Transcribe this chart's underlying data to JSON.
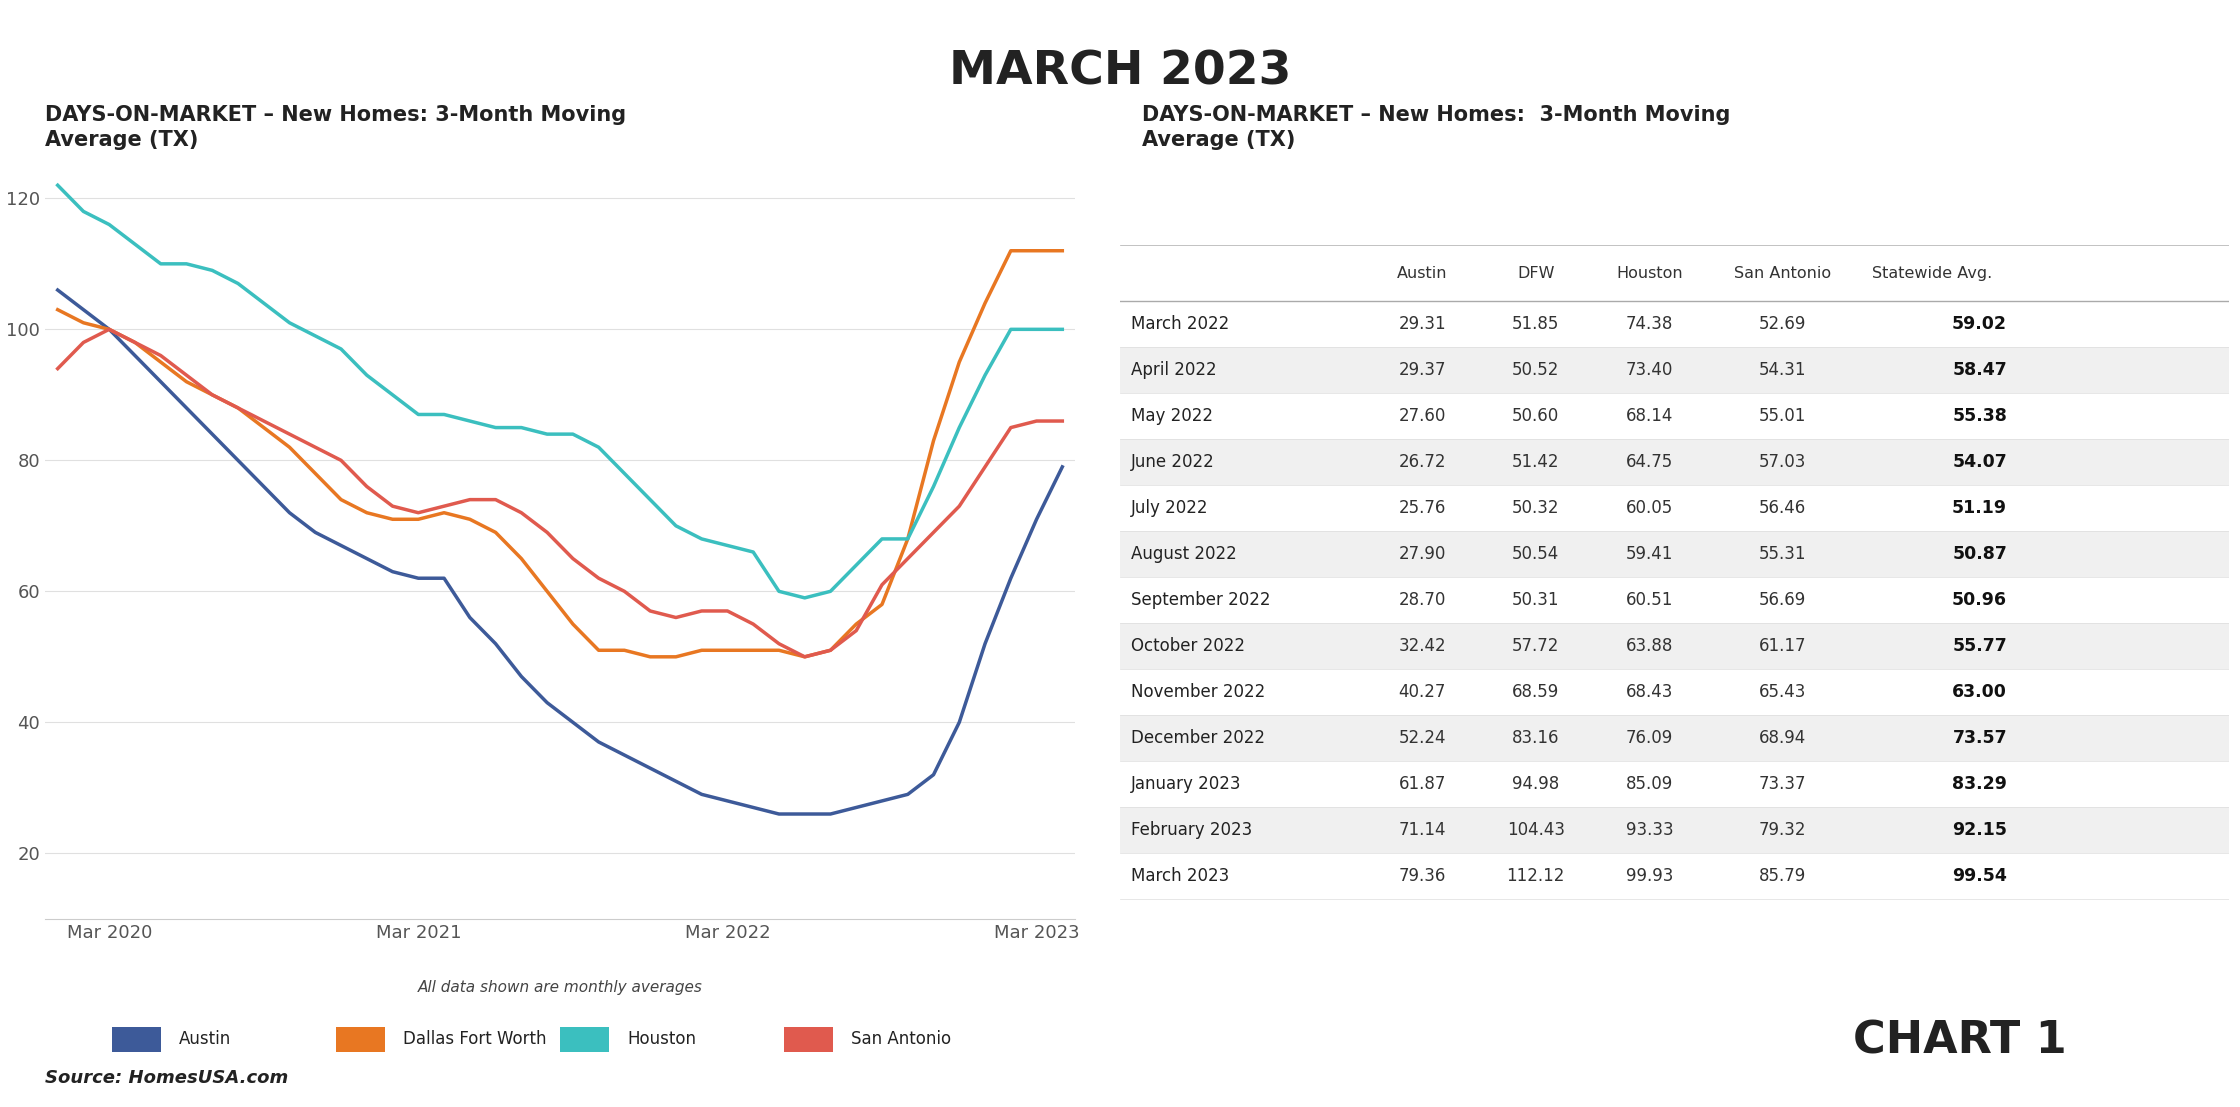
{
  "title": "MARCH 2023",
  "chart_subtitle_left": "DAYS-ON-MARKET – New Homes: 3-Month Moving\nAverage (TX)",
  "chart_subtitle_right": "DAYS-ON-MARKET – New Homes:  3-Month Moving\nAverage (TX)",
  "source": "Source: HomesUSA.com",
  "chart1_label": "CHART 1",
  "note": "All data shown are monthly averages",
  "x_tick_labels": [
    "Mar 2020",
    "Mar 2021",
    "Mar 2022",
    "Mar 2023"
  ],
  "y_ticks": [
    20,
    40,
    60,
    80,
    100,
    120
  ],
  "legend_items": [
    "Austin",
    "Dallas Fort Worth",
    "Houston",
    "San Antonio"
  ],
  "line_colors": {
    "Austin": "#3d5a99",
    "DFW": "#e87722",
    "Houston": "#3bbfbf",
    "San Antonio": "#e05a4e"
  },
  "table_headers": [
    "",
    "Austin",
    "DFW",
    "Houston",
    "San Antonio",
    "Statewide Avg."
  ],
  "table_rows": [
    [
      "March 2022",
      "29.31",
      "51.85",
      "74.38",
      "52.69",
      "59.02"
    ],
    [
      "April 2022",
      "29.37",
      "50.52",
      "73.40",
      "54.31",
      "58.47"
    ],
    [
      "May 2022",
      "27.60",
      "50.60",
      "68.14",
      "55.01",
      "55.38"
    ],
    [
      "June 2022",
      "26.72",
      "51.42",
      "64.75",
      "57.03",
      "54.07"
    ],
    [
      "July 2022",
      "25.76",
      "50.32",
      "60.05",
      "56.46",
      "51.19"
    ],
    [
      "August 2022",
      "27.90",
      "50.54",
      "59.41",
      "55.31",
      "50.87"
    ],
    [
      "September 2022",
      "28.70",
      "50.31",
      "60.51",
      "56.69",
      "50.96"
    ],
    [
      "October 2022",
      "32.42",
      "57.72",
      "63.88",
      "61.17",
      "55.77"
    ],
    [
      "November 2022",
      "40.27",
      "68.59",
      "68.43",
      "65.43",
      "63.00"
    ],
    [
      "December 2022",
      "52.24",
      "83.16",
      "76.09",
      "68.94",
      "73.57"
    ],
    [
      "January 2023",
      "61.87",
      "94.98",
      "85.09",
      "73.37",
      "83.29"
    ],
    [
      "February 2023",
      "71.14",
      "104.43",
      "93.33",
      "79.32",
      "92.15"
    ],
    [
      "March 2023",
      "79.36",
      "112.12",
      "99.93",
      "85.79",
      "99.54"
    ]
  ],
  "austin_data": [
    106,
    103,
    100,
    96,
    92,
    88,
    84,
    80,
    76,
    72,
    69,
    67,
    65,
    63,
    62,
    62,
    56,
    52,
    47,
    43,
    40,
    37,
    35,
    33,
    31,
    29,
    28,
    27,
    26,
    26,
    26,
    27,
    28,
    29,
    32,
    40,
    52,
    62,
    71,
    79
  ],
  "dfw_data": [
    103,
    101,
    100,
    98,
    95,
    92,
    90,
    88,
    85,
    82,
    78,
    74,
    72,
    71,
    71,
    72,
    71,
    69,
    65,
    60,
    55,
    51,
    51,
    50,
    50,
    51,
    51,
    51,
    51,
    50,
    51,
    55,
    58,
    68,
    83,
    95,
    104,
    112,
    112,
    112
  ],
  "houston_data": [
    122,
    118,
    116,
    113,
    110,
    110,
    109,
    107,
    104,
    101,
    99,
    97,
    93,
    90,
    87,
    87,
    86,
    85,
    85,
    84,
    84,
    82,
    78,
    74,
    70,
    68,
    67,
    66,
    60,
    59,
    60,
    64,
    68,
    68,
    76,
    85,
    93,
    100,
    100,
    100
  ],
  "san_antonio_data": [
    94,
    98,
    100,
    98,
    96,
    93,
    90,
    88,
    86,
    84,
    82,
    80,
    76,
    73,
    72,
    73,
    74,
    74,
    72,
    69,
    65,
    62,
    60,
    57,
    56,
    57,
    57,
    55,
    52,
    50,
    51,
    54,
    61,
    65,
    69,
    73,
    79,
    85,
    86,
    86
  ],
  "n_points": 40
}
